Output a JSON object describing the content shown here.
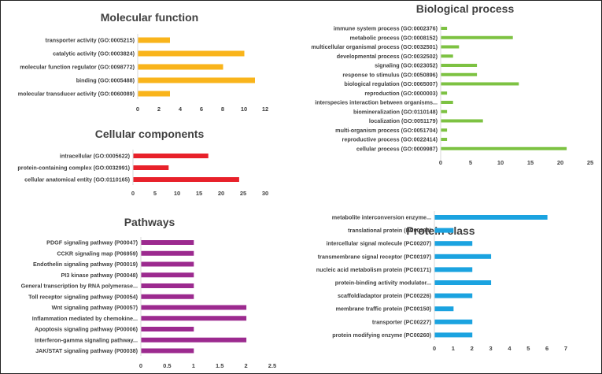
{
  "chart_data": [
    {
      "id": "molecular-function",
      "type": "bar",
      "orientation": "horizontal",
      "title": "Molecular function",
      "color": "#F9B41B",
      "categories": [
        "transporter activity (GO:0005215)",
        "catalytic activity (GO:0003824)",
        "molecular function regulator (GO:0098772)",
        "binding (GO:0005488)",
        "molecular transducer activity (GO:0060089)"
      ],
      "values": [
        3,
        10,
        8,
        11,
        3
      ],
      "xlim": [
        0,
        12
      ],
      "ticks": [
        "0",
        "2",
        "4",
        "6",
        "8",
        "10",
        "12"
      ],
      "xlabel": "",
      "ylabel": "",
      "grid": false
    },
    {
      "id": "cellular-components",
      "type": "bar",
      "orientation": "horizontal",
      "title": "Cellular components",
      "color": "#E8212A",
      "categories": [
        "intracellular (GO:0005622)",
        "protein-containing complex (GO:0032991)",
        "cellular anatomical entity (GO:0110165)"
      ],
      "values": [
        17,
        8,
        24
      ],
      "xlim": [
        0,
        30
      ],
      "ticks": [
        "0",
        "5",
        "10",
        "15",
        "20",
        "25",
        "30"
      ],
      "xlabel": "",
      "ylabel": "",
      "grid": false
    },
    {
      "id": "pathways",
      "type": "bar",
      "orientation": "horizontal",
      "title": "Pathways",
      "color": "#9C2A8F",
      "categories": [
        "PDGF signaling pathway (P00047)",
        "CCKR signaling map (P06959)",
        "Endothelin signaling pathway (P00019)",
        "PI3 kinase pathway (P00048)",
        "General transcription by RNA polymerase...",
        "Toll receptor signaling pathway (P00054)",
        "Wnt signaling pathway (P00057)",
        "Inflammation mediated by chemokine...",
        "Apoptosis signaling pathway (P00006)",
        "Interferon-gamma signaling pathway...",
        "JAK/STAT signaling pathway (P00038)"
      ],
      "values": [
        1,
        1,
        1,
        1,
        1,
        1,
        2,
        2,
        1,
        2,
        1
      ],
      "xlim": [
        0,
        2.5
      ],
      "ticks": [
        "0",
        "0.5",
        "1",
        "1.5",
        "2",
        "2.5"
      ],
      "xlabel": "",
      "ylabel": "",
      "grid": false
    },
    {
      "id": "biological-process",
      "type": "bar",
      "orientation": "horizontal",
      "title": "Biological process",
      "color": "#7DC242",
      "categories": [
        "immune system process (GO:0002376)",
        "metabolic process (GO:0008152)",
        "multicellular organismal process (GO:0032501)",
        "developmental process (GO:0032502)",
        "signaling (GO:0023052)",
        "response to stimulus (GO:0050896)",
        "biological regulation (GO:0065007)",
        "reproduction (GO:0000003)",
        "interspecies interaction between organisms...",
        "biomineralization (GO:0110148)",
        "localization (GO:0051179)",
        "multi-organism process (GO:0051704)",
        "reproductive process (GO:0022414)",
        "cellular process (GO:0009987)"
      ],
      "values": [
        1,
        12,
        3,
        2,
        6,
        6,
        13,
        1,
        2,
        1,
        7,
        1,
        1,
        21
      ],
      "xlim": [
        0,
        25
      ],
      "ticks": [
        "0",
        "5",
        "10",
        "15",
        "20",
        "25"
      ],
      "xlabel": "",
      "ylabel": "",
      "grid": false
    },
    {
      "id": "protein-class",
      "type": "bar",
      "orientation": "horizontal",
      "title": "Protein class",
      "color": "#1BA3E0",
      "categories": [
        "metabolite interconversion enzyme...",
        "translational protein (PC00263)",
        "intercellular signal molecule (PC00207)",
        "transmembrane signal receptor (PC00197)",
        "nucleic acid metabolism protein (PC00171)",
        "protein-binding activity modulator...",
        "scaffold/adaptor protein (PC00226)",
        "membrane traffic protein (PC00150)",
        "transporter (PC00227)",
        "protein modifying enzyme (PC00260)"
      ],
      "values": [
        6,
        1,
        2,
        3,
        2,
        3,
        2,
        1,
        2,
        2
      ],
      "xlim": [
        0,
        7
      ],
      "ticks": [
        "0",
        "1",
        "2",
        "3",
        "4",
        "5",
        "6",
        "7"
      ],
      "xlabel": "",
      "ylabel": "",
      "grid": false
    }
  ]
}
